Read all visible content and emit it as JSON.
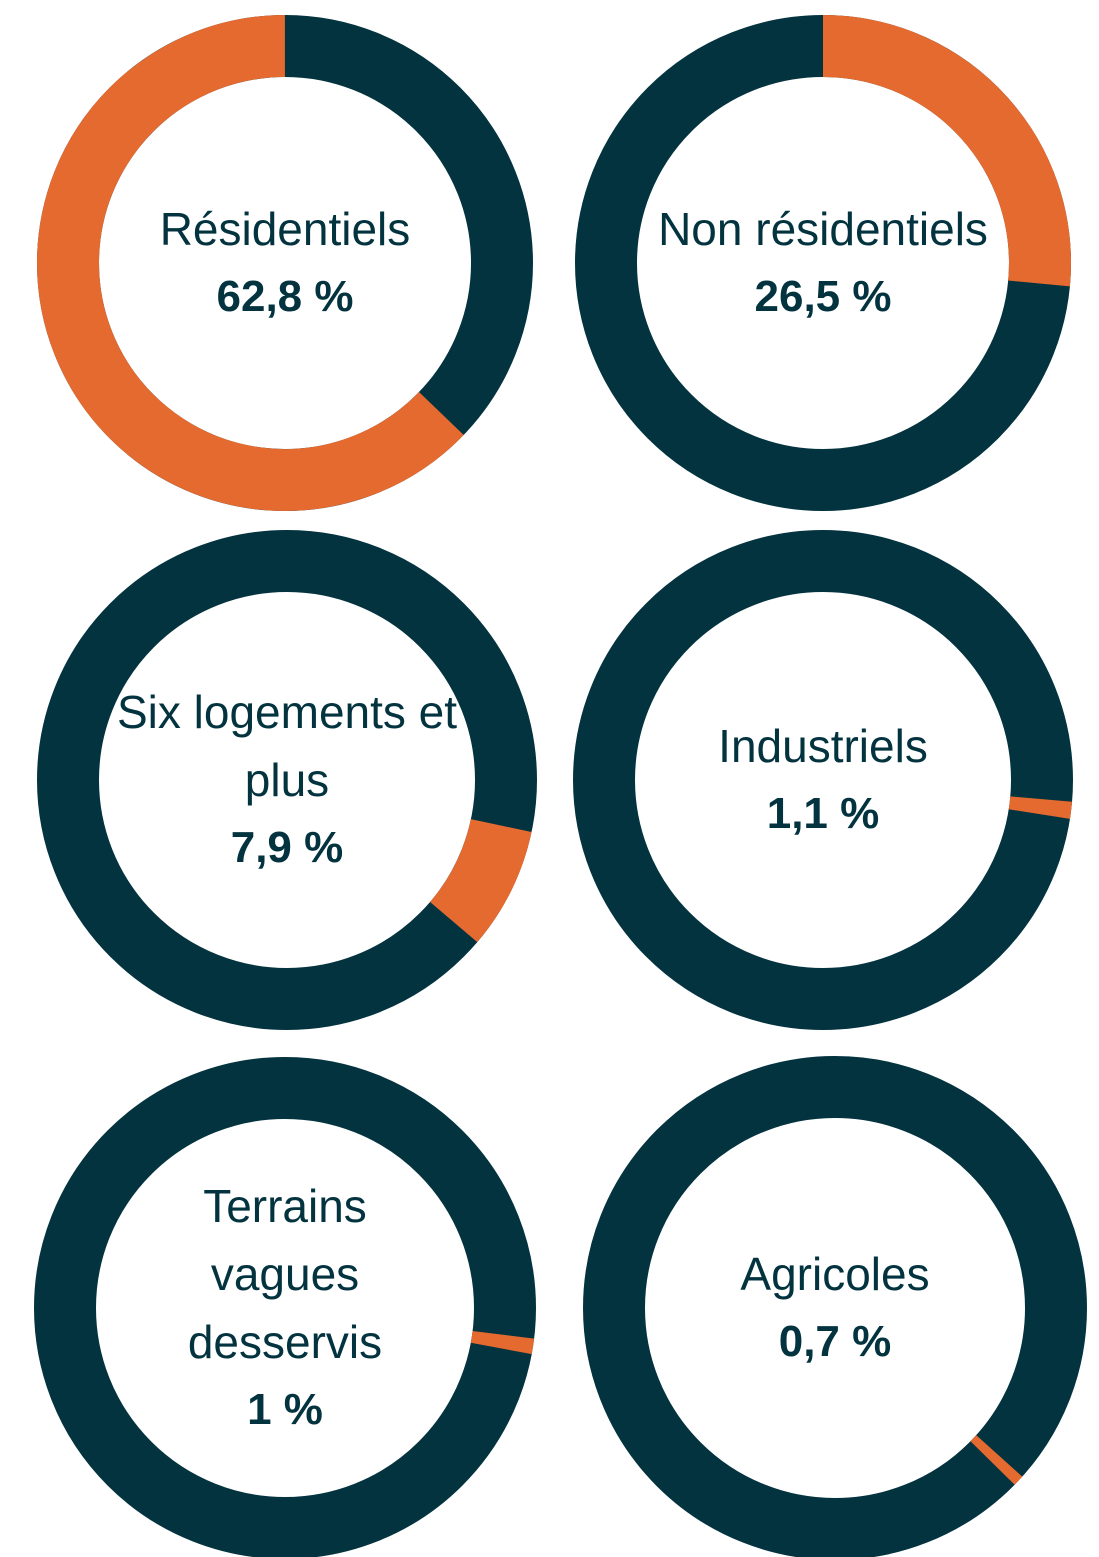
{
  "chart_data": [
    {
      "type": "donut",
      "title": "Résidentiels",
      "values": [
        62.8
      ],
      "value_labels": [
        "62,8 %"
      ],
      "color": "#e46a30",
      "track_color": "#03333f",
      "start_angle": 133.9
    },
    {
      "type": "donut",
      "title": "Non résidentiels",
      "values": [
        26.5
      ],
      "value_labels": [
        "26,5 %"
      ],
      "color": "#e46a30",
      "track_color": "#03333f",
      "start_angle": 0
    },
    {
      "type": "donut",
      "title": "Six logements et plus",
      "values": [
        7.9
      ],
      "value_labels": [
        "7,9 %"
      ],
      "color": "#e46a30",
      "track_color": "#03333f",
      "start_angle": 102
    },
    {
      "type": "donut",
      "title": "Industriels",
      "values": [
        1.1
      ],
      "value_labels": [
        "1,1 %"
      ],
      "color": "#e46a30",
      "track_color": "#03333f",
      "start_angle": 95
    },
    {
      "type": "donut",
      "title": "Terrains vagues desservis",
      "values": [
        1
      ],
      "value_labels": [
        "1 %"
      ],
      "color": "#e46a30",
      "track_color": "#03333f",
      "start_angle": 97
    },
    {
      "type": "donut",
      "title": "Agricoles",
      "values": [
        0.7
      ],
      "value_labels": [
        "0,7 %"
      ],
      "color": "#e46a30",
      "track_color": "#03333f",
      "start_angle": 132
    }
  ]
}
